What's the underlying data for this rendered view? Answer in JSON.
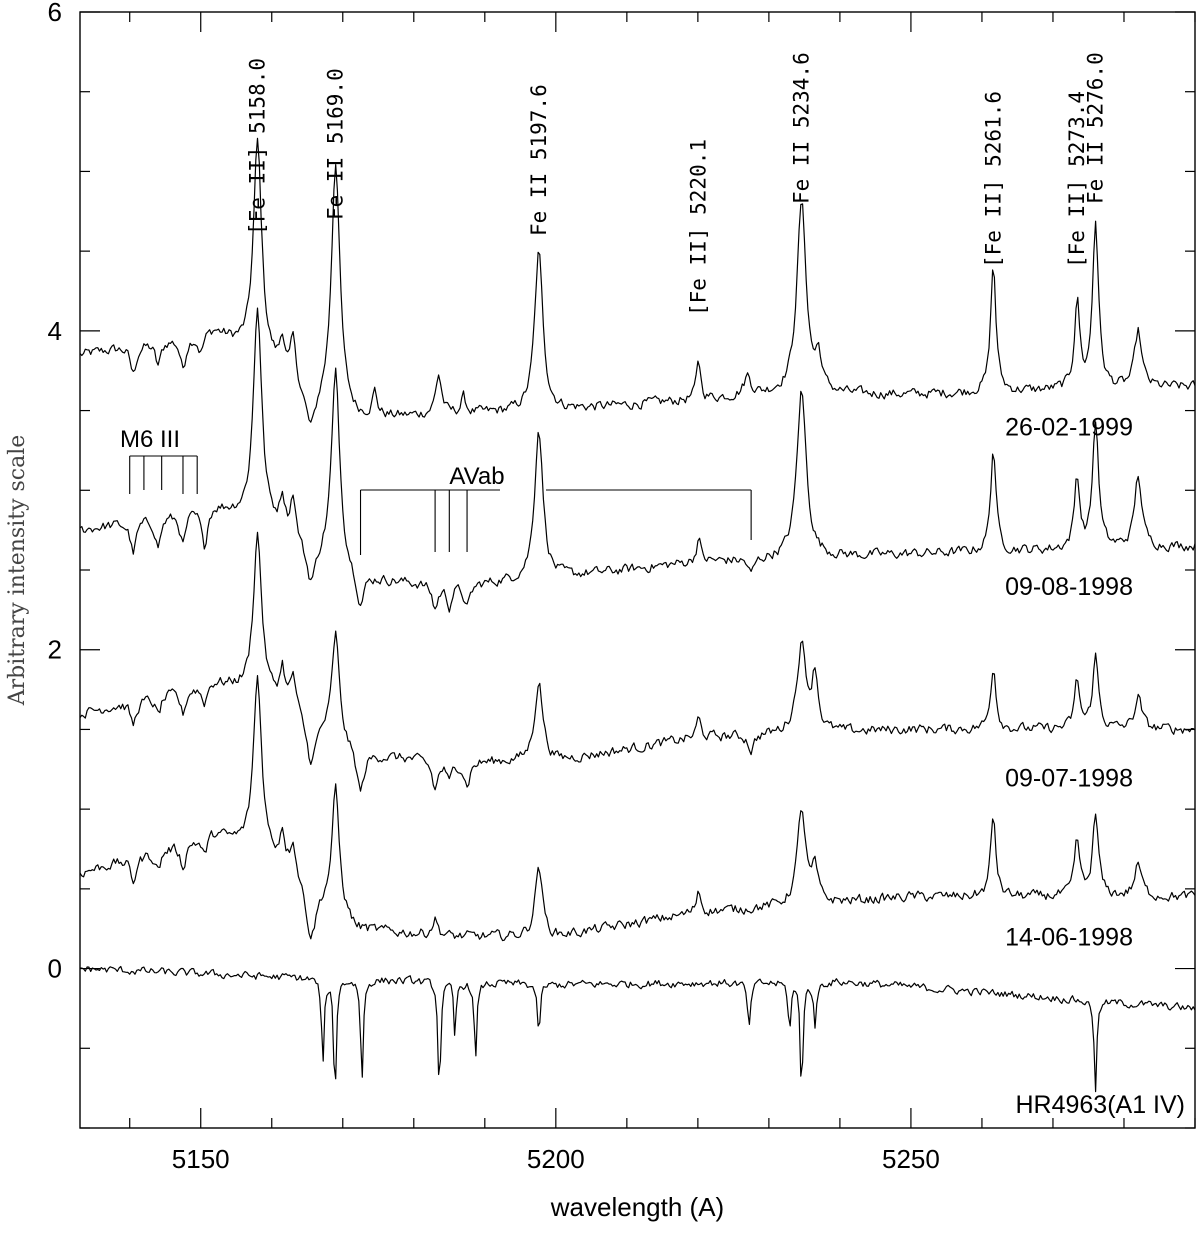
{
  "chart_data": {
    "type": "line",
    "title": "",
    "xlabel": "wavelength (A)",
    "ylabel": "Arbitrary intensity scale",
    "xlim": [
      5133,
      5290
    ],
    "ylim": [
      -1.0,
      6.0
    ],
    "x_ticks_labeled": [
      5150,
      5200,
      5250
    ],
    "x_tick_labels": [
      "5150",
      "5200",
      "5250"
    ],
    "x_minor_step": 10,
    "y_ticks_labeled": [
      0,
      2,
      4,
      6
    ],
    "y_tick_labels": [
      "0",
      "2",
      "4",
      "6"
    ],
    "y_minor_step": 0.5,
    "grid": false,
    "line_labels": [
      {
        "wavelength": 5158.0,
        "text": "[Fe II] 5158.0"
      },
      {
        "wavelength": 5169.0,
        "text": "Fe II 5169.0"
      },
      {
        "wavelength": 5197.6,
        "text": "Fe II 5197.6"
      },
      {
        "wavelength": 5220.1,
        "text": "[Fe II] 5220.1"
      },
      {
        "wavelength": 5234.6,
        "text": "Fe II 5234.6"
      },
      {
        "wavelength": 5261.6,
        "text": "[Fe II] 5261.6"
      },
      {
        "wavelength": 5273.4,
        "text": "[Fe II] 5273.4"
      },
      {
        "wavelength": 5276.0,
        "text": "Fe II 5276.0"
      }
    ],
    "groups": [
      {
        "label": "M6 III",
        "level": 3.0,
        "wavelengths": [
          5140.0,
          5142.0,
          5144.5,
          5147.5,
          5149.5
        ]
      },
      {
        "label": "AVab",
        "level": 3.0,
        "wavelengths": [
          5172.5,
          5183.0,
          5185.0,
          5187.5,
          5227.5
        ]
      }
    ],
    "series": [
      {
        "name": "26-02-1999",
        "baseline": 3.55,
        "noise": 0.05,
        "continuum": [
          [
            5133,
            3.85
          ],
          [
            5152,
            4.0
          ],
          [
            5165,
            3.65
          ],
          [
            5172,
            3.45
          ],
          [
            5200,
            3.5
          ],
          [
            5230,
            3.6
          ],
          [
            5250,
            3.6
          ],
          [
            5290,
            3.65
          ]
        ],
        "features": [
          [
            5140.5,
            -0.18,
            0.5
          ],
          [
            5144.0,
            -0.15,
            0.5
          ],
          [
            5147.5,
            -0.2,
            0.5
          ],
          [
            5150.0,
            -0.12,
            0.5
          ],
          [
            5158.0,
            1.35,
            0.7
          ],
          [
            5161.5,
            0.2,
            0.4
          ],
          [
            5163.0,
            0.25,
            0.4
          ],
          [
            5165.5,
            -0.3,
            1.0
          ],
          [
            5169.0,
            1.55,
            0.7
          ],
          [
            5174.5,
            0.15,
            0.4
          ],
          [
            5183.5,
            0.25,
            0.5
          ],
          [
            5187.0,
            0.1,
            0.4
          ],
          [
            5197.6,
            1.0,
            0.7
          ],
          [
            5220.1,
            0.25,
            0.35
          ],
          [
            5227.0,
            0.12,
            0.6
          ],
          [
            5234.6,
            1.2,
            0.8
          ],
          [
            5237.0,
            0.2,
            0.5
          ],
          [
            5261.6,
            0.8,
            0.45
          ],
          [
            5273.4,
            0.55,
            0.45
          ],
          [
            5276.0,
            1.05,
            0.5
          ],
          [
            5282.0,
            0.35,
            0.6
          ]
        ],
        "date_label": "26-02-1999"
      },
      {
        "name": "09-08-1998",
        "baseline": 2.6,
        "noise": 0.05,
        "continuum": [
          [
            5133,
            2.75
          ],
          [
            5152,
            2.9
          ],
          [
            5165,
            2.7
          ],
          [
            5172,
            2.45
          ],
          [
            5185,
            2.4
          ],
          [
            5200,
            2.45
          ],
          [
            5220,
            2.55
          ],
          [
            5250,
            2.6
          ],
          [
            5290,
            2.65
          ]
        ],
        "features": [
          [
            5140.5,
            -0.2,
            0.5
          ],
          [
            5144.0,
            -0.18,
            0.5
          ],
          [
            5147.5,
            -0.2,
            0.5
          ],
          [
            5150.5,
            -0.25,
            0.5
          ],
          [
            5158.0,
            1.35,
            0.7
          ],
          [
            5161.5,
            0.2,
            0.4
          ],
          [
            5163.0,
            0.25,
            0.4
          ],
          [
            5165.5,
            -0.3,
            1.0
          ],
          [
            5169.0,
            1.2,
            0.7
          ],
          [
            5172.5,
            -0.2,
            0.6
          ],
          [
            5183.0,
            -0.15,
            0.5
          ],
          [
            5185.0,
            -0.12,
            0.4
          ],
          [
            5187.5,
            -0.15,
            0.5
          ],
          [
            5197.6,
            0.95,
            0.7
          ],
          [
            5220.1,
            0.15,
            0.35
          ],
          [
            5227.5,
            -0.1,
            0.5
          ],
          [
            5234.6,
            1.05,
            0.8
          ],
          [
            5261.6,
            0.65,
            0.45
          ],
          [
            5273.4,
            0.45,
            0.45
          ],
          [
            5276.0,
            0.8,
            0.5
          ],
          [
            5282.0,
            0.45,
            0.6
          ]
        ],
        "date_label": "09-08-1998"
      },
      {
        "name": "09-07-1998",
        "baseline": 1.45,
        "noise": 0.05,
        "continuum": [
          [
            5133,
            1.6
          ],
          [
            5152,
            1.8
          ],
          [
            5165,
            1.65
          ],
          [
            5172,
            1.35
          ],
          [
            5185,
            1.3
          ],
          [
            5200,
            1.3
          ],
          [
            5220,
            1.45
          ],
          [
            5250,
            1.5
          ],
          [
            5290,
            1.5
          ]
        ],
        "features": [
          [
            5140.5,
            -0.15,
            0.5
          ],
          [
            5144.0,
            -0.12,
            0.5
          ],
          [
            5147.5,
            -0.15,
            0.5
          ],
          [
            5150.5,
            -0.12,
            0.5
          ],
          [
            5158.0,
            1.0,
            0.7
          ],
          [
            5161.5,
            0.2,
            0.4
          ],
          [
            5163.0,
            0.2,
            0.4
          ],
          [
            5165.5,
            -0.35,
            1.0
          ],
          [
            5169.0,
            0.65,
            0.6
          ],
          [
            5172.5,
            -0.25,
            0.6
          ],
          [
            5183.0,
            -0.18,
            0.5
          ],
          [
            5185.0,
            -0.12,
            0.4
          ],
          [
            5187.5,
            -0.15,
            0.5
          ],
          [
            5197.6,
            0.5,
            0.7
          ],
          [
            5220.1,
            0.12,
            0.35
          ],
          [
            5227.5,
            -0.1,
            0.5
          ],
          [
            5234.6,
            0.55,
            0.8
          ],
          [
            5236.5,
            0.35,
            0.5
          ],
          [
            5261.6,
            0.4,
            0.45
          ],
          [
            5273.4,
            0.3,
            0.45
          ],
          [
            5276.0,
            0.45,
            0.5
          ],
          [
            5282.0,
            0.2,
            0.6
          ]
        ],
        "date_label": "09-07-1998"
      },
      {
        "name": "14-06-1998",
        "baseline": 0.4,
        "noise": 0.05,
        "continuum": [
          [
            5133,
            0.6
          ],
          [
            5152,
            0.85
          ],
          [
            5165,
            0.6
          ],
          [
            5172,
            0.25
          ],
          [
            5185,
            0.2
          ],
          [
            5200,
            0.2
          ],
          [
            5220,
            0.35
          ],
          [
            5250,
            0.45
          ],
          [
            5290,
            0.45
          ]
        ],
        "features": [
          [
            5140.5,
            -0.15,
            0.5
          ],
          [
            5144.0,
            -0.12,
            0.5
          ],
          [
            5147.5,
            -0.15,
            0.5
          ],
          [
            5150.5,
            -0.12,
            0.5
          ],
          [
            5158.0,
            1.1,
            0.7
          ],
          [
            5161.5,
            0.2,
            0.4
          ],
          [
            5163.0,
            0.2,
            0.4
          ],
          [
            5165.5,
            -0.4,
            1.0
          ],
          [
            5169.0,
            0.75,
            0.6
          ],
          [
            5183.0,
            0.1,
            0.5
          ],
          [
            5197.6,
            0.45,
            0.6
          ],
          [
            5220.1,
            0.15,
            0.35
          ],
          [
            5234.6,
            0.6,
            0.7
          ],
          [
            5236.5,
            0.2,
            0.5
          ],
          [
            5261.6,
            0.5,
            0.45
          ],
          [
            5273.4,
            0.35,
            0.45
          ],
          [
            5276.0,
            0.5,
            0.5
          ],
          [
            5282.0,
            0.2,
            0.6
          ]
        ],
        "date_label": "14-06-1998"
      },
      {
        "name": "HR4963(A1 IV)",
        "baseline": 0.0,
        "noise": 0.04,
        "continuum": [
          [
            5133,
            0.0
          ],
          [
            5160,
            -0.05
          ],
          [
            5200,
            -0.1
          ],
          [
            5240,
            -0.08
          ],
          [
            5290,
            -0.25
          ]
        ],
        "features": [
          [
            5167.2,
            -0.55,
            0.22
          ],
          [
            5168.9,
            -0.75,
            0.22
          ],
          [
            5172.7,
            -0.65,
            0.22
          ],
          [
            5183.6,
            -0.7,
            0.22
          ],
          [
            5185.8,
            -0.35,
            0.2
          ],
          [
            5188.7,
            -0.5,
            0.22
          ],
          [
            5197.6,
            -0.35,
            0.22
          ],
          [
            5227.2,
            -0.3,
            0.25
          ],
          [
            5232.9,
            -0.3,
            0.22
          ],
          [
            5234.6,
            -0.7,
            0.22
          ],
          [
            5236.5,
            -0.3,
            0.22
          ],
          [
            5276.0,
            -0.55,
            0.22
          ]
        ],
        "date_label": "HR4963(A1 IV)"
      }
    ]
  }
}
